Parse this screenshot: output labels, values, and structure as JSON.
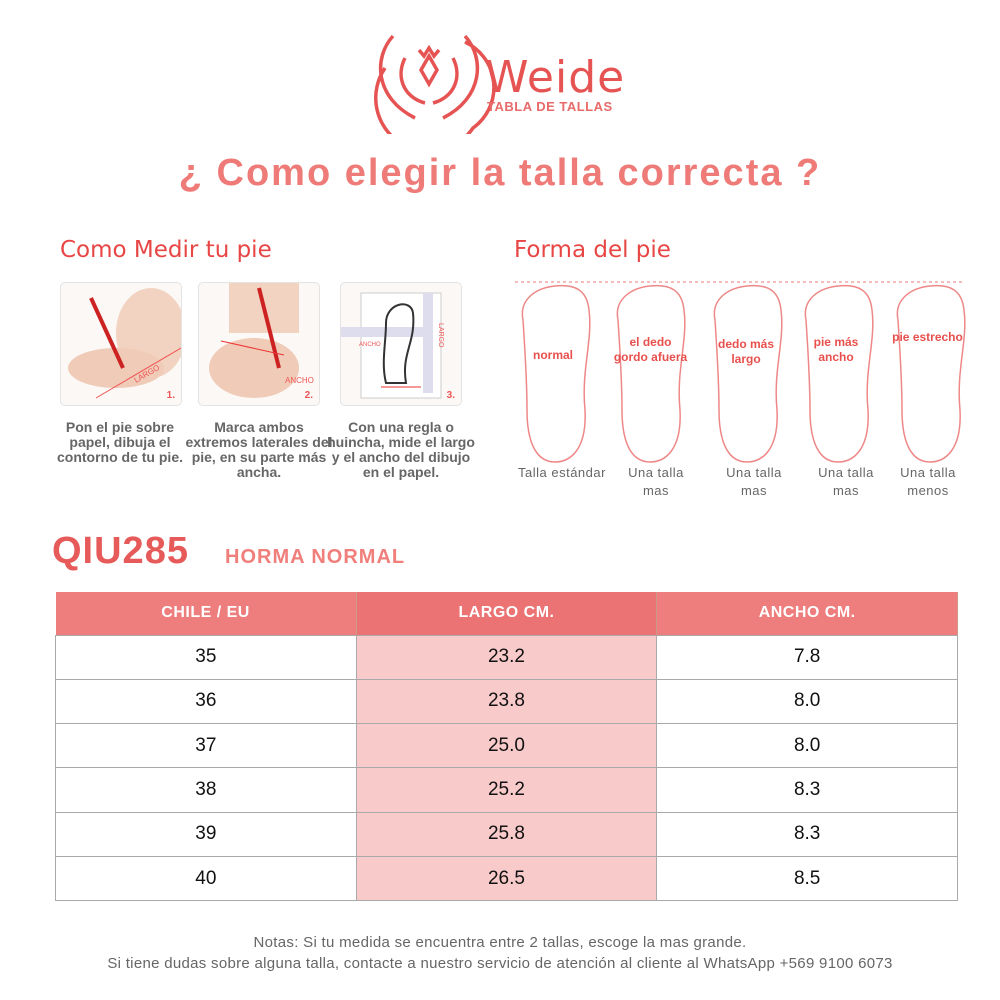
{
  "brand": {
    "name": "Weide",
    "subtitle": "TABLA DE TALLAS"
  },
  "title": "¿ Como elegir la talla correcta ?",
  "measure": {
    "heading": "Como Medir tu pie",
    "steps": [
      {
        "number": "1.",
        "tag": "LARGO",
        "caption": "Pon el pie sobre papel, dibuja el contorno de tu pie."
      },
      {
        "number": "2.",
        "tag": "ANCHO",
        "caption": "Marca ambos extremos laterales del pie, en su parte más ancha."
      },
      {
        "number": "3.",
        "tag": "ANCHO",
        "tag2": "LARGO",
        "caption": "Con una regla o huincha, mide el largo y el ancho del dibujo en el papel."
      }
    ]
  },
  "shapes": {
    "heading": "Forma del pie",
    "items": [
      {
        "label": "normal",
        "size": "Talla estándar"
      },
      {
        "label": "el dedo gordo afuera",
        "size": "Una talla mas"
      },
      {
        "label": "dedo más largo",
        "size": "Una talla mas"
      },
      {
        "label": "pie más ancho",
        "size": "Una talla mas"
      },
      {
        "label": "pie estrecho",
        "size": "Una talla menos"
      }
    ]
  },
  "model": {
    "code": "QIU285",
    "fit": "HORMA NORMAL"
  },
  "table": {
    "headers": [
      "CHILE / EU",
      "LARGO CM.",
      "ANCHO CM."
    ],
    "rows": [
      [
        "35",
        "23.2",
        "7.8"
      ],
      [
        "36",
        "23.8",
        "8.0"
      ],
      [
        "37",
        "25.0",
        "8.0"
      ],
      [
        "38",
        "25.2",
        "8.3"
      ],
      [
        "39",
        "25.8",
        "8.3"
      ],
      [
        "40",
        "26.5",
        "8.5"
      ]
    ]
  },
  "notes": [
    "Notas: Si tu medida se encuentra entre 2 tallas, escoge la mas grande.",
    "Si tiene dudas sobre alguna talla, contacte a nuestro servicio de atención al cliente al WhatsApp +569 9100 6073"
  ],
  "colors": {
    "accent": "#e65353",
    "header": "#ee7d7d",
    "highlight": "#f8caca"
  }
}
